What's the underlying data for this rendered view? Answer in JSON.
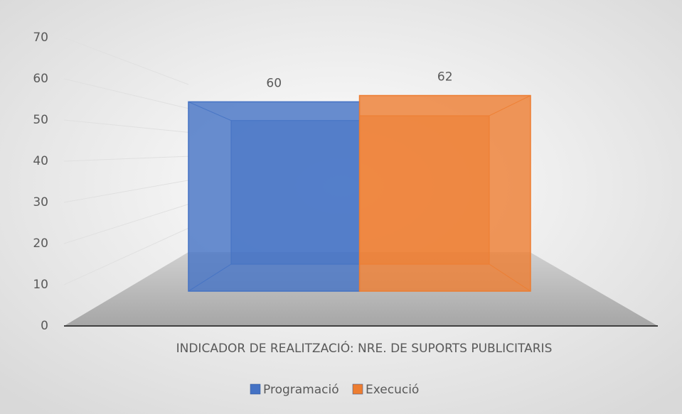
{
  "chart_data": {
    "type": "bar3d",
    "categories": [
      "INDICADOR DE REALITZACIÓ: NRE. DE SUPORTS PUBLICITARIS"
    ],
    "series": [
      {
        "name": "Programació",
        "color": "#4472c4",
        "values": [
          60
        ]
      },
      {
        "name": "Execució",
        "color": "#ed7d31",
        "values": [
          62
        ]
      }
    ],
    "ylim": [
      0,
      70
    ],
    "yticks": [
      0,
      10,
      20,
      30,
      40,
      50,
      60,
      70
    ],
    "grid": true,
    "legend": "bottom"
  }
}
